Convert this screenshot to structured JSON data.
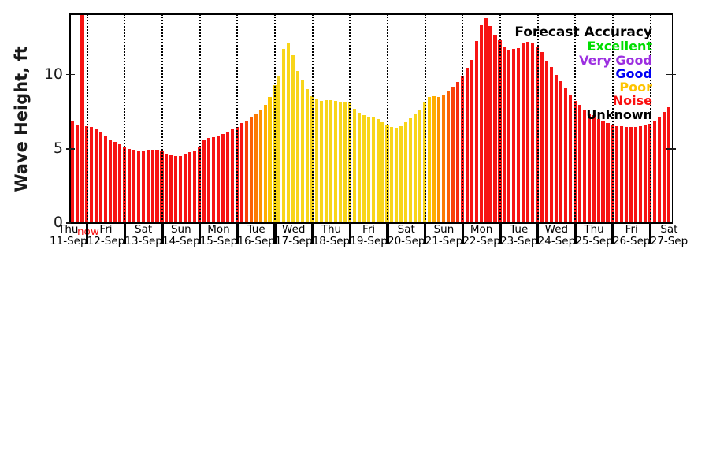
{
  "axis": {
    "ylabel": "Wave Height, ft",
    "now_label": "now",
    "now_color": "#f71414"
  },
  "legend": {
    "title": "Forecast Accuracy",
    "entries": [
      {
        "label": "Excellent",
        "color": "#00dd00"
      },
      {
        "label": "Very Good",
        "color": "#9c2fe0"
      },
      {
        "label": "Good",
        "color": "#0000f5"
      },
      {
        "label": "Poor",
        "color": "#fec400"
      },
      {
        "label": "Noise",
        "color": "#fb1010"
      },
      {
        "label": "Unknown",
        "color": "#000000"
      }
    ]
  },
  "chart_data": {
    "type": "bar",
    "title": "",
    "ylabel": "Wave Height, ft",
    "ylim": [
      0,
      14.06
    ],
    "yticks": [
      0,
      5,
      10
    ],
    "x_interval_hours": 3,
    "grid": "vertical dotted lines at each day boundary",
    "legend_position": "upper-right inside plot, no frame",
    "now_marker": {
      "label": "now",
      "global_slot": 2,
      "color": "#f71414"
    },
    "palette": {
      "r": "#f71414",
      "y": "#f8d51a"
    },
    "color_meaning": {
      "r": "Noise",
      "y": "Poor",
      "orange": "transition Noise-Poor"
    },
    "days": [
      {
        "dow": "Thu",
        "date": "11-Sep",
        "values": [
          6.85,
          6.65,
          6.55,
          6.5
        ],
        "colors": [
          "r",
          "r",
          "r",
          "r"
        ]
      },
      {
        "dow": "Fri",
        "date": "12-Sep",
        "values": [
          6.45,
          6.3,
          6.15,
          5.9,
          5.65,
          5.45,
          5.3,
          5.15
        ],
        "colors": [
          "r",
          "r",
          "r",
          "r",
          "r",
          "r",
          "r",
          "r"
        ]
      },
      {
        "dow": "Sat",
        "date": "13-Sep",
        "values": [
          5.0,
          4.95,
          4.9,
          4.9,
          4.95,
          4.95,
          4.95,
          4.9
        ],
        "colors": [
          "r",
          "r",
          "r",
          "r",
          "r",
          "r",
          "r",
          "r"
        ]
      },
      {
        "dow": "Sun",
        "date": "14-Sep",
        "values": [
          4.65,
          4.55,
          4.5,
          4.5,
          4.65,
          4.75,
          4.85,
          5.1
        ],
        "colors": [
          "r",
          "r",
          "r",
          "r",
          "r",
          "r",
          "r",
          "r"
        ]
      },
      {
        "dow": "Mon",
        "date": "15-Sep",
        "values": [
          5.55,
          5.75,
          5.8,
          5.85,
          6.0,
          6.15,
          6.3,
          6.45
        ],
        "colors": [
          "r",
          "r",
          "r",
          "r",
          "r",
          "r",
          "r",
          "r"
        ]
      },
      {
        "dow": "Tue",
        "date": "16-Sep",
        "values": [
          6.75,
          6.9,
          7.15,
          7.4,
          7.6,
          7.95,
          8.5,
          9.3
        ],
        "colors": [
          "#f71414",
          "#f9420a",
          "#fb6006",
          "#fc7a03",
          "#fd9301",
          "#feae01",
          "#fec801",
          "#f9d813"
        ]
      },
      {
        "dow": "Wed",
        "date": "17-Sep",
        "values": [
          9.9,
          11.7,
          12.1,
          11.3,
          10.25,
          9.6,
          9.0,
          8.55
        ],
        "colors": [
          "y",
          "y",
          "y",
          "y",
          "y",
          "y",
          "y",
          "y"
        ]
      },
      {
        "dow": "Thu",
        "date": "18-Sep",
        "values": [
          8.35,
          8.25,
          8.3,
          8.3,
          8.25,
          8.1,
          8.15,
          8.1
        ],
        "colors": [
          "y",
          "y",
          "y",
          "y",
          "y",
          "y",
          "y",
          "y"
        ]
      },
      {
        "dow": "Fri",
        "date": "19-Sep",
        "values": [
          7.7,
          7.45,
          7.25,
          7.15,
          7.1,
          7.0,
          6.8,
          6.6
        ],
        "colors": [
          "y",
          "y",
          "y",
          "y",
          "y",
          "y",
          "y",
          "y"
        ]
      },
      {
        "dow": "Sat",
        "date": "20-Sep",
        "values": [
          6.45,
          6.4,
          6.5,
          6.8,
          7.05,
          7.3,
          7.6,
          8.1
        ],
        "colors": [
          "y",
          "y",
          "y",
          "y",
          "y",
          "y",
          "y",
          "y"
        ]
      },
      {
        "dow": "Sun",
        "date": "21-Sep",
        "values": [
          8.5,
          8.55,
          8.5,
          8.65,
          8.85,
          9.2,
          9.5,
          9.85
        ],
        "colors": [
          "#fec801",
          "#feae01",
          "#fd9301",
          "#fc7a03",
          "#fb6006",
          "#f9420a",
          "#f82b0e",
          "#f71414"
        ]
      },
      {
        "dow": "Mon",
        "date": "22-Sep",
        "values": [
          10.45,
          11.0,
          12.25,
          13.3,
          13.8,
          13.25,
          12.7,
          12.3
        ],
        "colors": [
          "r",
          "r",
          "r",
          "r",
          "r",
          "r",
          "r",
          "r"
        ]
      },
      {
        "dow": "Tue",
        "date": "23-Sep",
        "values": [
          11.9,
          11.65,
          11.7,
          11.8,
          12.1,
          12.2,
          12.1,
          11.9
        ],
        "colors": [
          "r",
          "r",
          "r",
          "r",
          "r",
          "r",
          "r",
          "r"
        ]
      },
      {
        "dow": "Wed",
        "date": "24-Sep",
        "values": [
          11.5,
          10.95,
          10.5,
          10.0,
          9.55,
          9.1,
          8.65,
          8.2
        ],
        "colors": [
          "r",
          "r",
          "r",
          "r",
          "r",
          "r",
          "r",
          "r"
        ]
      },
      {
        "dow": "Thu",
        "date": "25-Sep",
        "values": [
          7.95,
          7.65,
          7.4,
          7.25,
          7.0,
          6.9,
          6.75,
          6.65
        ],
        "colors": [
          "r",
          "r",
          "r",
          "r",
          "r",
          "r",
          "r",
          "r"
        ]
      },
      {
        "dow": "Fri",
        "date": "26-Sep",
        "values": [
          6.55,
          6.5,
          6.45,
          6.45,
          6.45,
          6.5,
          6.6,
          6.7
        ],
        "colors": [
          "r",
          "r",
          "r",
          "r",
          "r",
          "r",
          "r",
          "r"
        ]
      },
      {
        "dow": "Sat",
        "date": "27-Sep",
        "values": [
          6.9,
          7.15,
          7.5,
          7.8
        ],
        "colors": [
          "r",
          "r",
          "r",
          "r"
        ]
      }
    ]
  }
}
